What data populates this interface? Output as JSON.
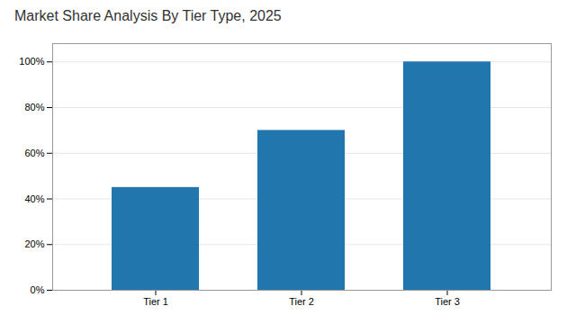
{
  "chart_data": {
    "type": "bar",
    "title": "Market Share Analysis By Tier Type, 2025",
    "categories": [
      "Tier 1",
      "Tier 2",
      "Tier 3"
    ],
    "values": [
      45,
      70,
      100
    ],
    "color": "#2176AE",
    "ylim": [
      0,
      108
    ],
    "yticks": [
      {
        "value": 0,
        "label": "0%"
      },
      {
        "value": 20,
        "label": "20%"
      },
      {
        "value": 40,
        "label": "40%"
      },
      {
        "value": 60,
        "label": "60%"
      },
      {
        "value": 80,
        "label": "80%"
      },
      {
        "value": 100,
        "label": "100%"
      }
    ],
    "grid": true
  }
}
